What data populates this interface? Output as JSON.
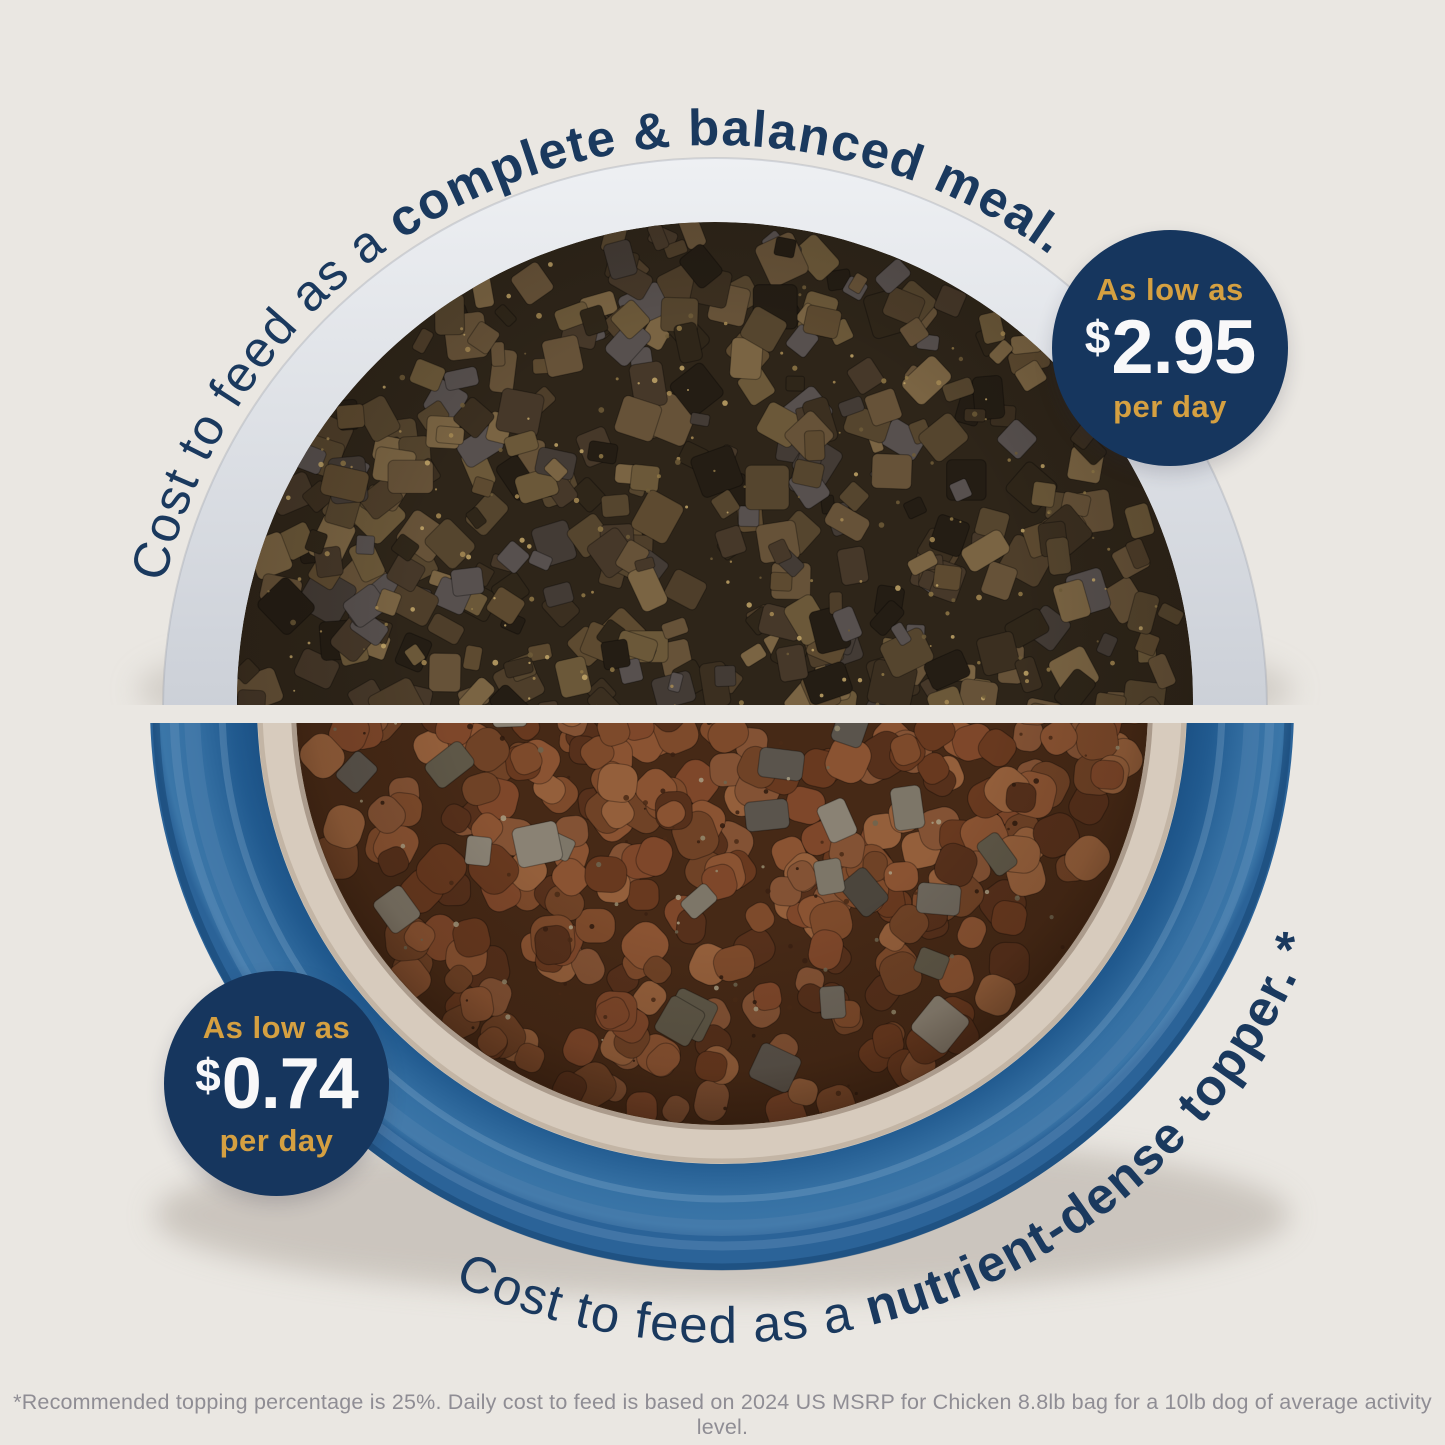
{
  "page": {
    "background_color": "#eae7e2",
    "fine_print": "*Recommended topping percentage is 25%. Daily cost to feed is based on 2024 US MSRP for Chicken 8.8lb bag for a 10lb dog of average activity level."
  },
  "colors": {
    "navy_text": "#1a395e",
    "badge_navy": "#16365e",
    "badge_gold": "#d5a041",
    "badge_white": "#f8f8f9",
    "top_bowl_rim_gray": "#c9ccd4",
    "bottom_bowl_blue": "#2a639b",
    "bottom_bowl_inner_cream": "#d7cbbd",
    "fine_print_gray": "#8f8d94"
  },
  "top_bowl": {
    "curved_caption": {
      "regular": "Cost to feed as a ",
      "bold": "complete & balanced meal."
    },
    "badge": {
      "top_line": "As low as",
      "currency_symbol": "$",
      "amount": "2.95",
      "bottom_line": "per day"
    }
  },
  "bottom_bowl": {
    "curved_caption": {
      "regular": "Cost to feed as a ",
      "bold": "nutrient-dense topper.",
      "suffix": " *"
    },
    "badge": {
      "top_line": "As low as",
      "currency_symbol": "$",
      "amount": "0.74",
      "bottom_line": "per day"
    }
  }
}
